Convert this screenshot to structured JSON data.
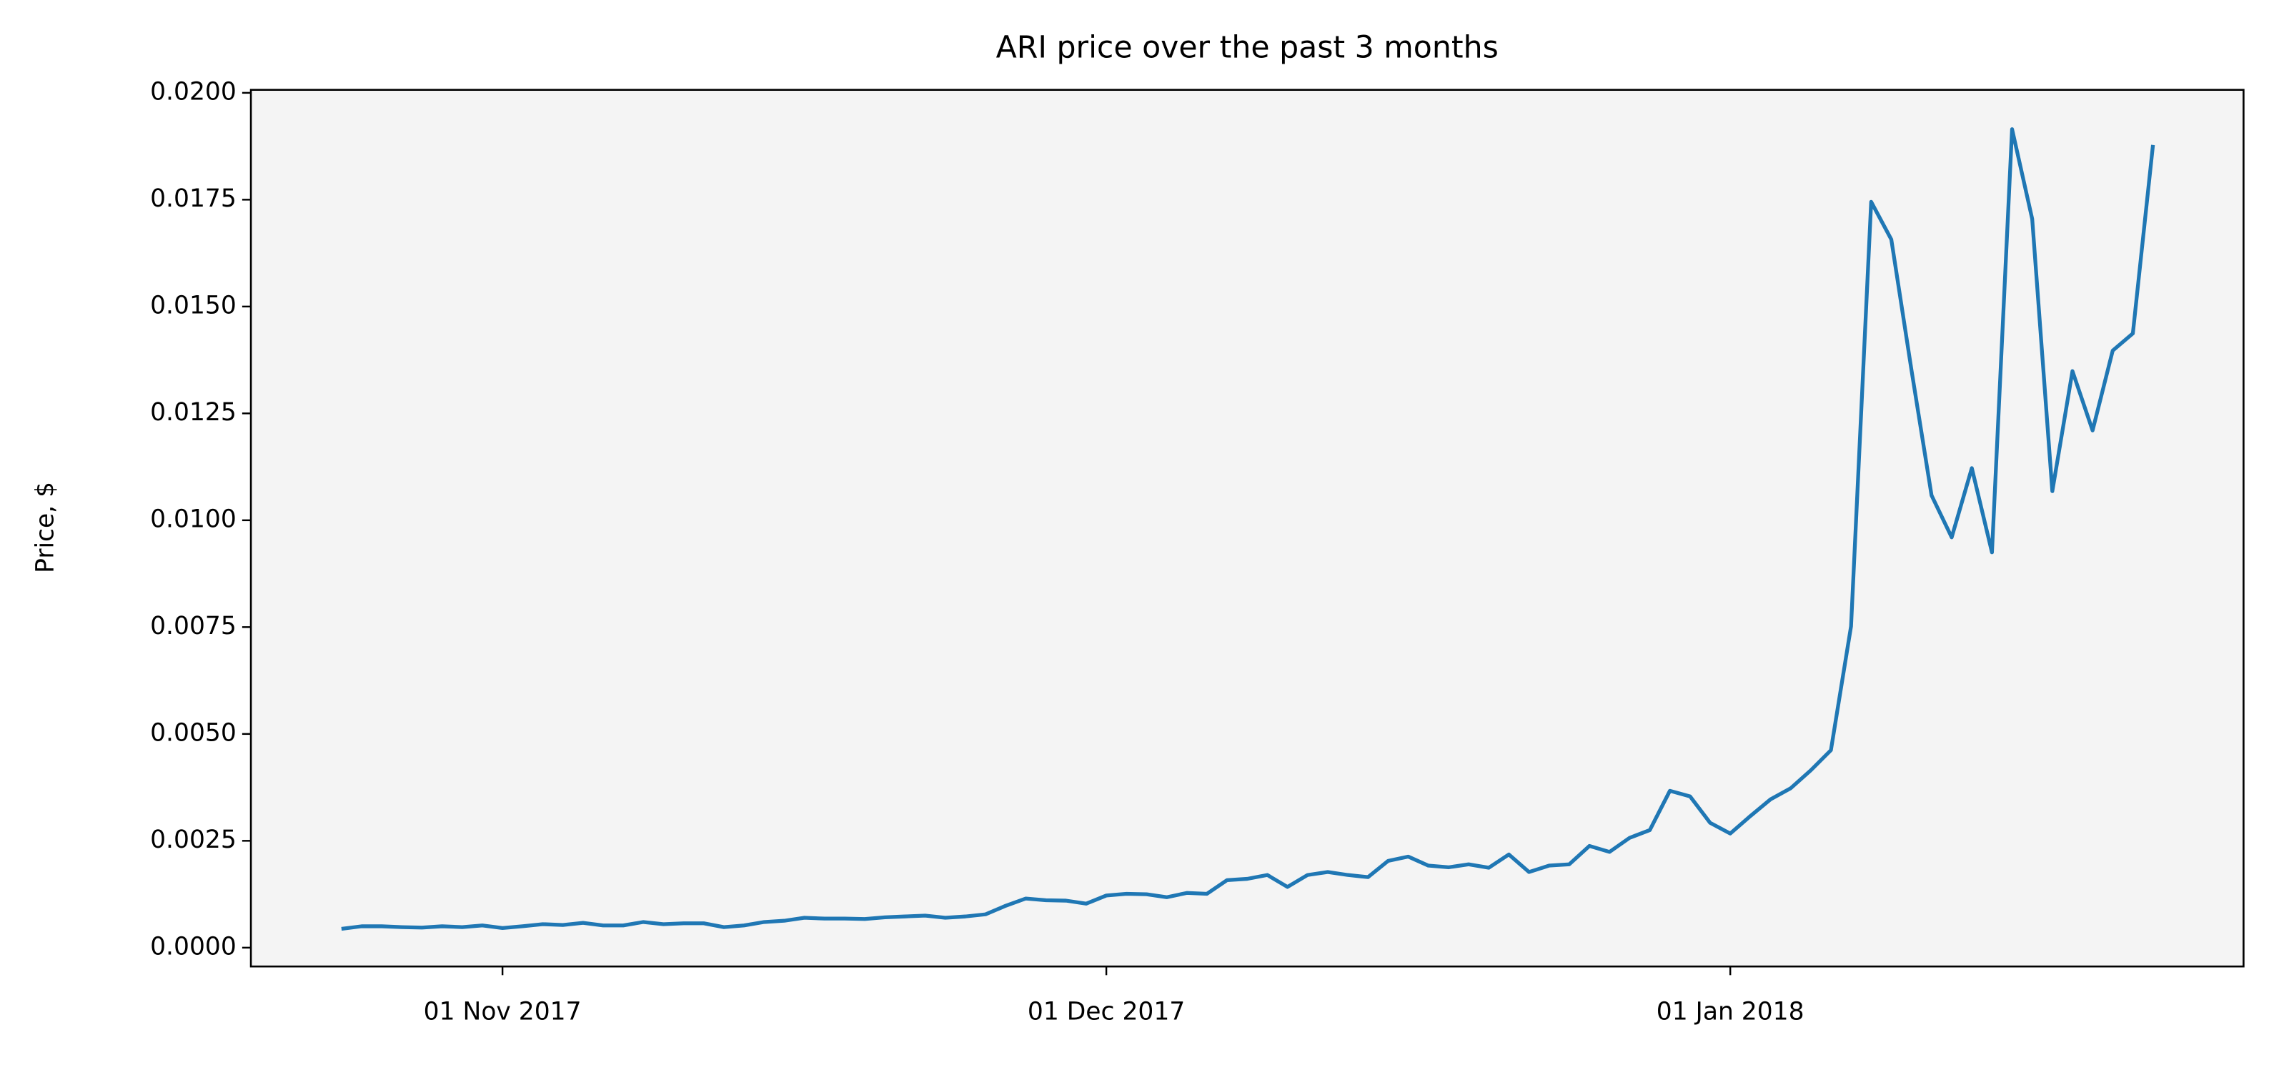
{
  "chart_data": {
    "type": "line",
    "title": "ARI price over the past 3 months",
    "y_label": "Price, $",
    "x": [
      "2017-10-24",
      "2017-10-25",
      "2017-10-26",
      "2017-10-27",
      "2017-10-28",
      "2017-10-29",
      "2017-10-30",
      "2017-10-31",
      "2017-11-01",
      "2017-11-02",
      "2017-11-03",
      "2017-11-04",
      "2017-11-05",
      "2017-11-06",
      "2017-11-07",
      "2017-11-08",
      "2017-11-09",
      "2017-11-10",
      "2017-11-11",
      "2017-11-12",
      "2017-11-13",
      "2017-11-14",
      "2017-11-15",
      "2017-11-16",
      "2017-11-17",
      "2017-11-18",
      "2017-11-19",
      "2017-11-20",
      "2017-11-21",
      "2017-11-22",
      "2017-11-23",
      "2017-11-24",
      "2017-11-25",
      "2017-11-26",
      "2017-11-27",
      "2017-11-28",
      "2017-11-29",
      "2017-11-30",
      "2017-12-01",
      "2017-12-02",
      "2017-12-03",
      "2017-12-04",
      "2017-12-05",
      "2017-12-06",
      "2017-12-07",
      "2017-12-08",
      "2017-12-09",
      "2017-12-10",
      "2017-12-11",
      "2017-12-12",
      "2017-12-13",
      "2017-12-14",
      "2017-12-15",
      "2017-12-16",
      "2017-12-17",
      "2017-12-18",
      "2017-12-19",
      "2017-12-20",
      "2017-12-21",
      "2017-12-22",
      "2017-12-23",
      "2017-12-24",
      "2017-12-25",
      "2017-12-26",
      "2017-12-27",
      "2017-12-28",
      "2017-12-29",
      "2017-12-30",
      "2017-12-31",
      "2018-01-01",
      "2018-01-02",
      "2018-01-03",
      "2018-01-04",
      "2018-01-05",
      "2018-01-06",
      "2018-01-07",
      "2018-01-08",
      "2018-01-09",
      "2018-01-10",
      "2018-01-11",
      "2018-01-12",
      "2018-01-13",
      "2018-01-14",
      "2018-01-15",
      "2018-01-16",
      "2018-01-17",
      "2018-01-18",
      "2018-01-19",
      "2018-01-20",
      "2018-01-21",
      "2018-01-22"
    ],
    "series": [
      {
        "name": "ARI",
        "color": "#1f77b4",
        "values": [
          0.00044,
          0.0005,
          0.0005,
          0.00048,
          0.00047,
          0.0005,
          0.00048,
          0.00052,
          0.00046,
          0.0005,
          0.00055,
          0.00053,
          0.00058,
          0.00052,
          0.00052,
          0.0006,
          0.00055,
          0.00057,
          0.00057,
          0.00048,
          0.00052,
          0.0006,
          0.00063,
          0.0007,
          0.00068,
          0.00068,
          0.00067,
          0.00071,
          0.00073,
          0.00075,
          0.0007,
          0.00073,
          0.00078,
          0.00098,
          0.00115,
          0.00111,
          0.0011,
          0.00103,
          0.00122,
          0.00126,
          0.00125,
          0.00118,
          0.00128,
          0.00126,
          0.00158,
          0.00161,
          0.0017,
          0.00142,
          0.0017,
          0.00177,
          0.0017,
          0.00165,
          0.00203,
          0.00213,
          0.00192,
          0.00188,
          0.00195,
          0.00187,
          0.00218,
          0.00177,
          0.00192,
          0.00195,
          0.00238,
          0.00224,
          0.00257,
          0.00275,
          0.00367,
          0.00354,
          0.00292,
          0.00267,
          0.00308,
          0.00347,
          0.00373,
          0.00415,
          0.00462,
          0.00752,
          0.01745,
          0.01657,
          0.01352,
          0.01058,
          0.0096,
          0.01122,
          0.00925,
          0.01915,
          0.01705,
          0.01068,
          0.01349,
          0.0121,
          0.01397,
          0.01437,
          0.01878
        ]
      }
    ],
    "xlim": [
      "2017-10-19T12:00:00Z",
      "2018-01-26T12:00:00Z"
    ],
    "xticks": [
      {
        "value": "2017-11-01",
        "label": "01 Nov 2017"
      },
      {
        "value": "2017-12-01",
        "label": "01 Dec 2017"
      },
      {
        "value": "2018-01-01",
        "label": "01 Jan 2018"
      }
    ],
    "ylim": [
      -0.00044,
      0.02007
    ],
    "yticks": [
      {
        "value": 0,
        "label": "0.0000"
      },
      {
        "value": 0.0025,
        "label": "0.0025"
      },
      {
        "value": 0.005,
        "label": "0.0050"
      },
      {
        "value": 0.0075,
        "label": "0.0075"
      },
      {
        "value": 0.01,
        "label": "0.0100"
      },
      {
        "value": 0.0125,
        "label": "0.0125"
      },
      {
        "value": 0.015,
        "label": "0.0150"
      },
      {
        "value": 0.0175,
        "label": "0.0175"
      },
      {
        "value": 0.02,
        "label": "0.0200"
      }
    ],
    "background": "#f4f4f4",
    "grid": false
  }
}
